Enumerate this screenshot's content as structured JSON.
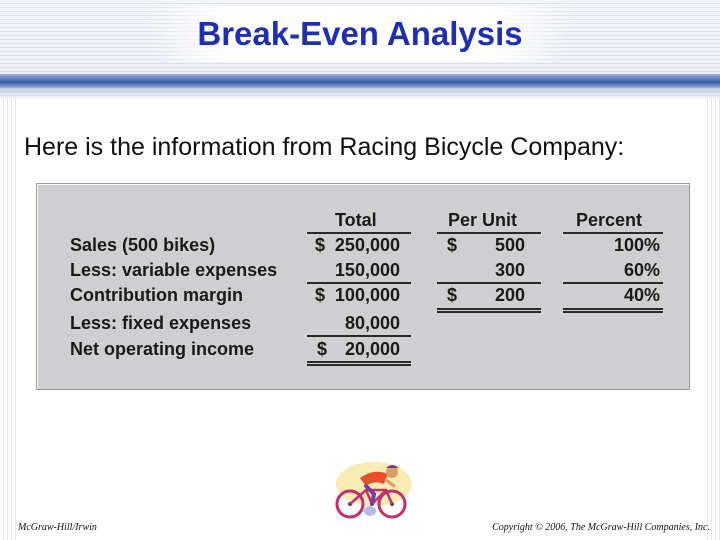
{
  "slide": {
    "title": "Break-Even Analysis",
    "intro": "Here is the information from Racing Bicycle Company:"
  },
  "table": {
    "headers": {
      "total": "Total",
      "per_unit": "Per Unit",
      "percent": "Percent"
    },
    "rows": [
      {
        "label": "Sales (500 bikes)",
        "total_sign": "$",
        "total": "250,000",
        "unit_sign": "$",
        "per_unit": "500",
        "percent": "100%"
      },
      {
        "label": "Less: variable expenses",
        "total_sign": "",
        "total": "150,000",
        "unit_sign": "",
        "per_unit": "300",
        "percent": "60%"
      },
      {
        "label": "Contribution margin",
        "total_sign": "$",
        "total": "100,000",
        "unit_sign": "$",
        "per_unit": "200",
        "percent": "40%"
      },
      {
        "label": "Less: fixed expenses",
        "total_sign": "",
        "total": "80,000"
      },
      {
        "label": "Net operating income",
        "total_sign": "$",
        "total": "20,000"
      }
    ]
  },
  "icons": {
    "clipart": "cyclist-icon"
  },
  "footer": {
    "left": "McGraw-Hill/Irwin",
    "right": "Copyright © 2006, The McGraw-Hill Companies, Inc."
  },
  "colors": {
    "title": "#1f2fb0",
    "accent_rule": "#3a5ea8",
    "panel": "#cfcfd1"
  }
}
